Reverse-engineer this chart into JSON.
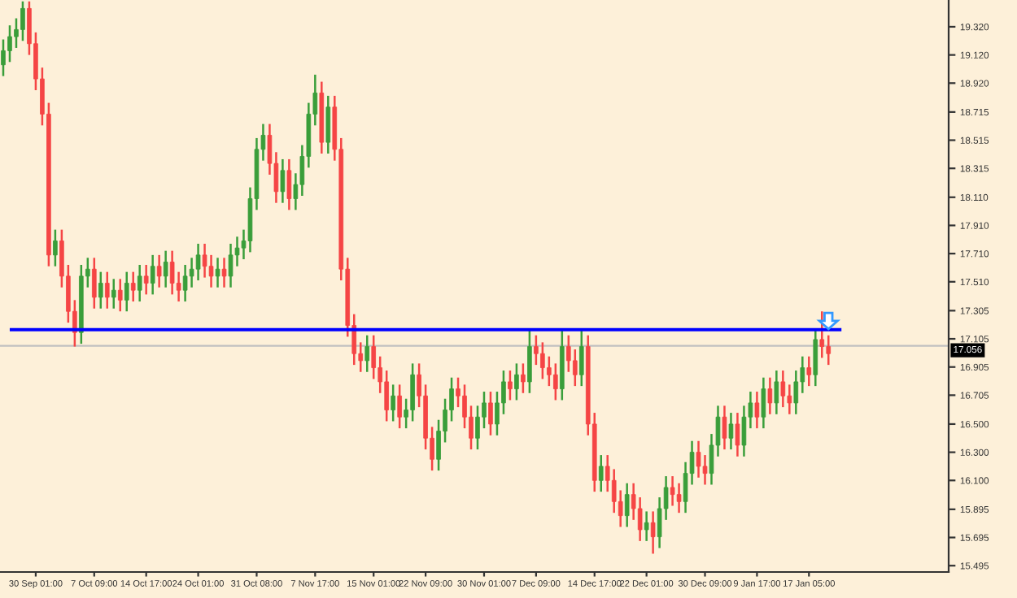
{
  "chart_data": {
    "type": "candlestick",
    "categories": [
      null,
      null,
      null,
      null,
      null,
      "30 Sep 01:00",
      null,
      null,
      null,
      null,
      null,
      null,
      null,
      null,
      "7 Oct 09:00",
      null,
      null,
      null,
      null,
      null,
      null,
      null,
      "14 Oct 17:00",
      null,
      null,
      null,
      null,
      null,
      null,
      null,
      "24 Oct 01:00",
      null,
      null,
      null,
      null,
      null,
      null,
      null,
      null,
      "31 Oct 08:00",
      null,
      null,
      null,
      null,
      null,
      null,
      null,
      null,
      "7 Nov 17:00",
      null,
      null,
      null,
      null,
      null,
      null,
      null,
      null,
      "15 Nov 01:00",
      null,
      null,
      null,
      null,
      null,
      null,
      null,
      "22 Nov 09:00",
      null,
      null,
      null,
      null,
      null,
      null,
      null,
      null,
      "30 Nov 01:00",
      null,
      null,
      null,
      null,
      null,
      null,
      null,
      "7 Dec 09:00",
      null,
      null,
      null,
      null,
      null,
      null,
      null,
      null,
      "14 Dec 17:00",
      null,
      null,
      null,
      null,
      null,
      null,
      null,
      "22 Dec 01:00",
      null,
      null,
      null,
      null,
      null,
      null,
      null,
      null,
      "30 Dec 09:00",
      null,
      null,
      null,
      null,
      null,
      null,
      null,
      "9 Jan 17:00",
      null,
      null,
      null,
      null,
      null,
      null,
      null,
      "17 Jan 05:00",
      null,
      null,
      null,
      null,
      null,
      null,
      null,
      null,
      null,
      null,
      null,
      null,
      null,
      null,
      null,
      null,
      null,
      null,
      null,
      null,
      null
    ],
    "ohlc": [
      [
        19.05,
        19.23,
        18.97,
        19.15
      ],
      [
        19.15,
        19.33,
        19.07,
        19.25
      ],
      [
        19.25,
        19.38,
        19.17,
        19.3
      ],
      [
        19.3,
        19.5,
        19.22,
        19.45
      ],
      [
        19.45,
        19.5,
        19.12,
        19.2
      ],
      [
        19.2,
        19.28,
        18.87,
        18.95
      ],
      [
        18.95,
        19.03,
        18.62,
        18.7
      ],
      [
        18.7,
        18.78,
        17.62,
        17.7
      ],
      [
        17.7,
        17.88,
        17.62,
        17.8
      ],
      [
        17.8,
        17.88,
        17.47,
        17.55
      ],
      [
        17.55,
        17.63,
        17.22,
        17.3
      ],
      [
        17.3,
        17.38,
        17.05,
        17.15
      ],
      [
        17.15,
        17.63,
        17.07,
        17.55
      ],
      [
        17.55,
        17.68,
        17.47,
        17.6
      ],
      [
        17.6,
        17.68,
        17.32,
        17.4
      ],
      [
        17.4,
        17.58,
        17.32,
        17.5
      ],
      [
        17.5,
        17.58,
        17.32,
        17.4
      ],
      [
        17.4,
        17.53,
        17.32,
        17.45
      ],
      [
        17.45,
        17.53,
        17.3,
        17.38
      ],
      [
        17.38,
        17.58,
        17.3,
        17.5
      ],
      [
        17.5,
        17.58,
        17.37,
        17.45
      ],
      [
        17.45,
        17.63,
        17.37,
        17.55
      ],
      [
        17.55,
        17.63,
        17.42,
        17.5
      ],
      [
        17.5,
        17.7,
        17.42,
        17.62
      ],
      [
        17.62,
        17.7,
        17.47,
        17.55
      ],
      [
        17.55,
        17.73,
        17.47,
        17.65
      ],
      [
        17.65,
        17.73,
        17.42,
        17.5
      ],
      [
        17.5,
        17.58,
        17.37,
        17.45
      ],
      [
        17.45,
        17.63,
        17.37,
        17.55
      ],
      [
        17.55,
        17.68,
        17.47,
        17.6
      ],
      [
        17.6,
        17.78,
        17.52,
        17.7
      ],
      [
        17.7,
        17.78,
        17.54,
        17.62
      ],
      [
        17.62,
        17.7,
        17.47,
        17.55
      ],
      [
        17.55,
        17.68,
        17.47,
        17.6
      ],
      [
        17.6,
        17.68,
        17.47,
        17.55
      ],
      [
        17.55,
        17.78,
        17.47,
        17.7
      ],
      [
        17.7,
        17.83,
        17.62,
        17.75
      ],
      [
        17.75,
        17.88,
        17.67,
        17.8
      ],
      [
        17.8,
        18.18,
        17.72,
        18.1
      ],
      [
        18.1,
        18.53,
        18.02,
        18.45
      ],
      [
        18.45,
        18.63,
        18.37,
        18.55
      ],
      [
        18.55,
        18.63,
        18.27,
        18.35
      ],
      [
        18.35,
        18.43,
        18.07,
        18.15
      ],
      [
        18.15,
        18.38,
        18.07,
        18.3
      ],
      [
        18.3,
        18.38,
        18.02,
        18.1
      ],
      [
        18.1,
        18.28,
        18.02,
        18.2
      ],
      [
        18.2,
        18.48,
        18.12,
        18.4
      ],
      [
        18.4,
        18.78,
        18.32,
        18.7
      ],
      [
        18.7,
        18.98,
        18.62,
        18.85
      ],
      [
        18.85,
        18.93,
        18.42,
        18.5
      ],
      [
        18.5,
        18.83,
        18.42,
        18.75
      ],
      [
        18.75,
        18.83,
        18.37,
        18.45
      ],
      [
        18.45,
        18.53,
        17.52,
        17.6
      ],
      [
        17.6,
        17.68,
        17.12,
        17.2
      ],
      [
        17.2,
        17.28,
        16.92,
        17.0
      ],
      [
        17.0,
        17.08,
        16.87,
        16.95
      ],
      [
        16.95,
        17.13,
        16.87,
        17.05
      ],
      [
        17.05,
        17.13,
        16.82,
        16.9
      ],
      [
        16.9,
        16.98,
        16.72,
        16.8
      ],
      [
        16.8,
        16.88,
        16.52,
        16.6
      ],
      [
        16.6,
        16.78,
        16.52,
        16.7
      ],
      [
        16.7,
        16.78,
        16.47,
        16.55
      ],
      [
        16.55,
        16.68,
        16.47,
        16.6
      ],
      [
        16.6,
        16.93,
        16.52,
        16.85
      ],
      [
        16.85,
        16.93,
        16.62,
        16.7
      ],
      [
        16.7,
        16.78,
        16.32,
        16.4
      ],
      [
        16.4,
        16.48,
        16.17,
        16.25
      ],
      [
        16.25,
        16.53,
        16.17,
        16.45
      ],
      [
        16.45,
        16.68,
        16.37,
        16.6
      ],
      [
        16.6,
        16.83,
        16.52,
        16.75
      ],
      [
        16.75,
        16.83,
        16.62,
        16.7
      ],
      [
        16.7,
        16.78,
        16.47,
        16.55
      ],
      [
        16.55,
        16.63,
        16.32,
        16.4
      ],
      [
        16.4,
        16.63,
        16.32,
        16.55
      ],
      [
        16.55,
        16.73,
        16.47,
        16.65
      ],
      [
        16.65,
        16.73,
        16.42,
        16.5
      ],
      [
        16.5,
        16.73,
        16.42,
        16.65
      ],
      [
        16.65,
        16.88,
        16.57,
        16.8
      ],
      [
        16.8,
        16.88,
        16.67,
        16.75
      ],
      [
        16.75,
        16.93,
        16.67,
        16.85
      ],
      [
        16.85,
        16.93,
        16.72,
        16.8
      ],
      [
        16.8,
        17.17,
        16.72,
        17.05
      ],
      [
        17.05,
        17.13,
        16.92,
        17.0
      ],
      [
        17.0,
        17.08,
        16.82,
        16.9
      ],
      [
        16.9,
        16.98,
        16.77,
        16.85
      ],
      [
        16.85,
        16.93,
        16.67,
        16.75
      ],
      [
        16.75,
        17.17,
        16.67,
        17.05
      ],
      [
        17.05,
        17.13,
        16.87,
        16.95
      ],
      [
        16.95,
        17.03,
        16.77,
        16.85
      ],
      [
        16.85,
        17.17,
        16.77,
        17.05
      ],
      [
        17.05,
        17.13,
        16.42,
        16.5
      ],
      [
        16.5,
        16.58,
        16.02,
        16.1
      ],
      [
        16.1,
        16.28,
        16.02,
        16.2
      ],
      [
        16.2,
        16.28,
        16.02,
        16.1
      ],
      [
        16.1,
        16.18,
        15.87,
        15.95
      ],
      [
        15.95,
        16.03,
        15.77,
        15.85
      ],
      [
        15.85,
        16.08,
        15.77,
        16.0
      ],
      [
        16.0,
        16.08,
        15.82,
        15.9
      ],
      [
        15.9,
        15.98,
        15.67,
        15.75
      ],
      [
        15.75,
        15.88,
        15.67,
        15.8
      ],
      [
        15.8,
        15.88,
        15.58,
        15.7
      ],
      [
        15.7,
        15.98,
        15.62,
        15.9
      ],
      [
        15.9,
        16.13,
        15.82,
        16.05
      ],
      [
        16.05,
        16.13,
        15.92,
        16.0
      ],
      [
        16.0,
        16.08,
        15.87,
        15.95
      ],
      [
        15.95,
        16.23,
        15.87,
        16.15
      ],
      [
        16.15,
        16.38,
        16.07,
        16.3
      ],
      [
        16.3,
        16.38,
        16.12,
        16.2
      ],
      [
        16.2,
        16.28,
        16.07,
        16.15
      ],
      [
        16.15,
        16.43,
        16.07,
        16.35
      ],
      [
        16.35,
        16.63,
        16.27,
        16.55
      ],
      [
        16.55,
        16.63,
        16.32,
        16.4
      ],
      [
        16.4,
        16.58,
        16.32,
        16.5
      ],
      [
        16.5,
        16.58,
        16.27,
        16.35
      ],
      [
        16.35,
        16.63,
        16.27,
        16.55
      ],
      [
        16.55,
        16.73,
        16.47,
        16.65
      ],
      [
        16.65,
        16.73,
        16.47,
        16.55
      ],
      [
        16.55,
        16.83,
        16.47,
        16.75
      ],
      [
        16.75,
        16.83,
        16.57,
        16.65
      ],
      [
        16.65,
        16.88,
        16.57,
        16.8
      ],
      [
        16.8,
        16.88,
        16.62,
        16.7
      ],
      [
        16.7,
        16.78,
        16.57,
        16.65
      ],
      [
        16.65,
        16.88,
        16.57,
        16.8
      ],
      [
        16.8,
        16.98,
        16.72,
        16.9
      ],
      [
        16.9,
        16.98,
        16.77,
        16.85
      ],
      [
        16.85,
        17.18,
        16.77,
        17.1
      ],
      [
        17.1,
        17.3,
        16.97,
        17.05
      ],
      [
        17.05,
        17.13,
        16.92,
        17.0
      ],
      null,
      null,
      null,
      null,
      null,
      null,
      null,
      null,
      null,
      null,
      null,
      null,
      null,
      null,
      null,
      null,
      null,
      null
    ],
    "colors": [
      "#3a9e3a",
      "#3a9e3a",
      "#3a9e3a",
      "#3a9e3a",
      "#f54545",
      "#f54545",
      "#f54545",
      "#f54545",
      "#3a9e3a",
      "#f54545",
      "#f54545",
      "#f54545",
      "#3a9e3a",
      "#3a9e3a",
      "#f54545",
      "#3a9e3a",
      "#f54545",
      "#3a9e3a",
      "#f54545",
      "#3a9e3a",
      "#f54545",
      "#3a9e3a",
      "#f54545",
      "#3a9e3a",
      "#f54545",
      "#3a9e3a",
      "#f54545",
      "#f54545",
      "#3a9e3a",
      "#3a9e3a",
      "#3a9e3a",
      "#f54545",
      "#f54545",
      "#3a9e3a",
      "#f54545",
      "#3a9e3a",
      "#3a9e3a",
      "#3a9e3a",
      "#3a9e3a",
      "#3a9e3a",
      "#3a9e3a",
      "#f54545",
      "#f54545",
      "#3a9e3a",
      "#f54545",
      "#3a9e3a",
      "#3a9e3a",
      "#3a9e3a",
      "#3a9e3a",
      "#f54545",
      "#3a9e3a",
      "#f54545",
      "#f54545",
      "#f54545",
      "#f54545",
      "#f54545",
      "#3a9e3a",
      "#f54545",
      "#f54545",
      "#f54545",
      "#3a9e3a",
      "#f54545",
      "#3a9e3a",
      "#3a9e3a",
      "#f54545",
      "#f54545",
      "#f54545",
      "#3a9e3a",
      "#3a9e3a",
      "#3a9e3a",
      "#f54545",
      "#f54545",
      "#f54545",
      "#3a9e3a",
      "#3a9e3a",
      "#f54545",
      "#3a9e3a",
      "#3a9e3a",
      "#f54545",
      "#3a9e3a",
      "#f54545",
      "#3a9e3a",
      "#f54545",
      "#f54545",
      "#f54545",
      "#f54545",
      "#3a9e3a",
      "#f54545",
      "#f54545",
      "#3a9e3a",
      "#f54545",
      "#f54545",
      "#3a9e3a",
      "#f54545",
      "#f54545",
      "#f54545",
      "#3a9e3a",
      "#f54545",
      "#f54545",
      "#3a9e3a",
      "#f54545",
      "#3a9e3a",
      "#3a9e3a",
      "#f54545",
      "#f54545",
      "#3a9e3a",
      "#3a9e3a",
      "#f54545",
      "#f54545",
      "#3a9e3a",
      "#3a9e3a",
      "#f54545",
      "#3a9e3a",
      "#f54545",
      "#3a9e3a",
      "#3a9e3a",
      "#f54545",
      "#3a9e3a",
      "#f54545",
      "#3a9e3a",
      "#f54545",
      "#f54545",
      "#3a9e3a",
      "#3a9e3a",
      "#f54545",
      "#3a9e3a",
      "#f54545",
      "#f54545",
      null,
      null,
      null,
      null,
      null,
      null,
      null,
      null,
      null,
      null,
      null,
      null,
      null,
      null,
      null,
      null,
      null,
      null
    ],
    "ylim": [
      15.45,
      19.51
    ],
    "yticks": [
      {
        "value": 19.32,
        "label": "19.320"
      },
      {
        "value": 19.12,
        "label": "19.120"
      },
      {
        "value": 18.92,
        "label": "18.920"
      },
      {
        "value": 18.715,
        "label": "18.715"
      },
      {
        "value": 18.515,
        "label": "18.515"
      },
      {
        "value": 18.315,
        "label": "18.315"
      },
      {
        "value": 18.11,
        "label": "18.110"
      },
      {
        "value": 17.91,
        "label": "17.910"
      },
      {
        "value": 17.71,
        "label": "17.710"
      },
      {
        "value": 17.51,
        "label": "17.510"
      },
      {
        "value": 17.305,
        "label": "17.305"
      },
      {
        "value": 17.105,
        "label": "17.105"
      },
      {
        "value": 16.905,
        "label": "16.905"
      },
      {
        "value": 16.705,
        "label": "16.705"
      },
      {
        "value": 16.5,
        "label": "16.500"
      },
      {
        "value": 16.3,
        "label": "16.300"
      },
      {
        "value": 16.1,
        "label": "16.100"
      },
      {
        "value": 15.895,
        "label": "15.895"
      },
      {
        "value": 15.695,
        "label": "15.695"
      },
      {
        "value": 15.495,
        "label": "15.495"
      }
    ],
    "ref_lines": [
      {
        "axis": "y",
        "value": 17.17,
        "label": null,
        "color": "#0000ff"
      },
      {
        "axis": "y",
        "value": 17.056,
        "label": "17.056",
        "color": "#c0c0c0"
      }
    ],
    "grid": false
  }
}
